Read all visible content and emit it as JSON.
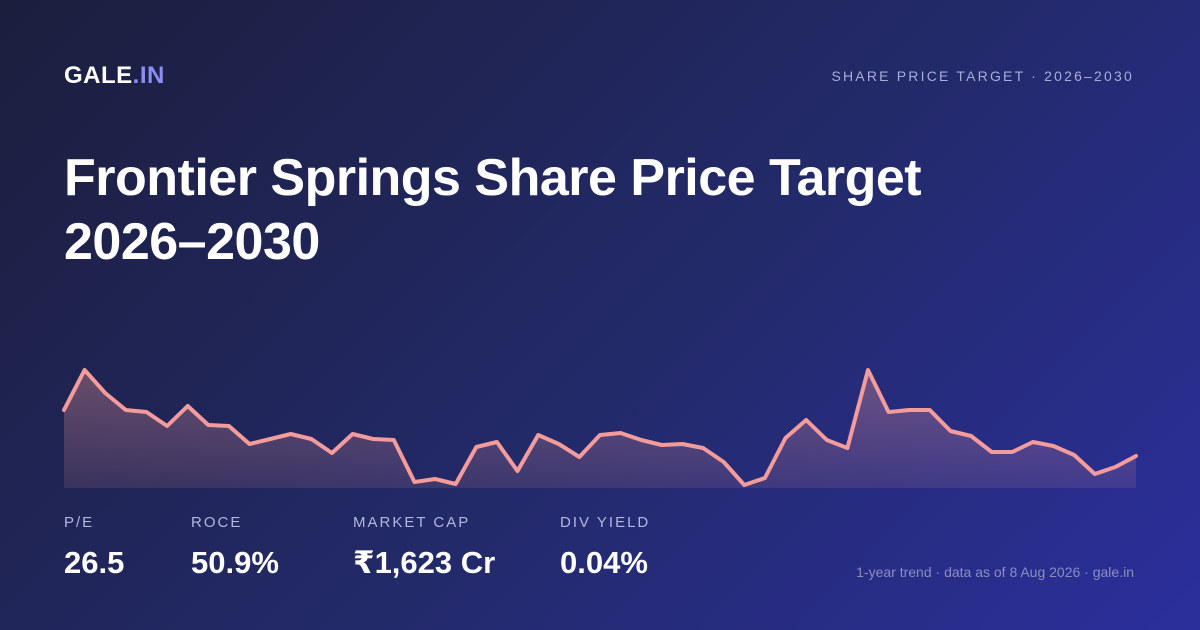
{
  "header": {
    "logo_main": "GALE",
    "logo_accent": ".IN",
    "tagline": "SHARE PRICE TARGET · 2026–2030"
  },
  "title": "Frontier Springs Share Price Target 2026–2030",
  "chart_data": {
    "type": "line",
    "color": "#f49b9b",
    "values": [
      78,
      118,
      95,
      78,
      76,
      62,
      82,
      63,
      62,
      44,
      49,
      54,
      49,
      35,
      54,
      49,
      48,
      6,
      9,
      4,
      41,
      46,
      17,
      53,
      44,
      31,
      53,
      55,
      48,
      43,
      44,
      40,
      26,
      3,
      10,
      50,
      68,
      48,
      40,
      118,
      76,
      78,
      78,
      57,
      52,
      36,
      36,
      46,
      42,
      33,
      14,
      21,
      32
    ]
  },
  "stats": [
    {
      "label": "P/E",
      "value": "26.5"
    },
    {
      "label": "ROCE",
      "value": "50.9%"
    },
    {
      "label": "MARKET CAP",
      "value": "₹1,623 Cr"
    },
    {
      "label": "DIV YIELD",
      "value": "0.04%"
    }
  ],
  "footer": "1-year trend · data as of 8 Aug 2026 · gale.in"
}
